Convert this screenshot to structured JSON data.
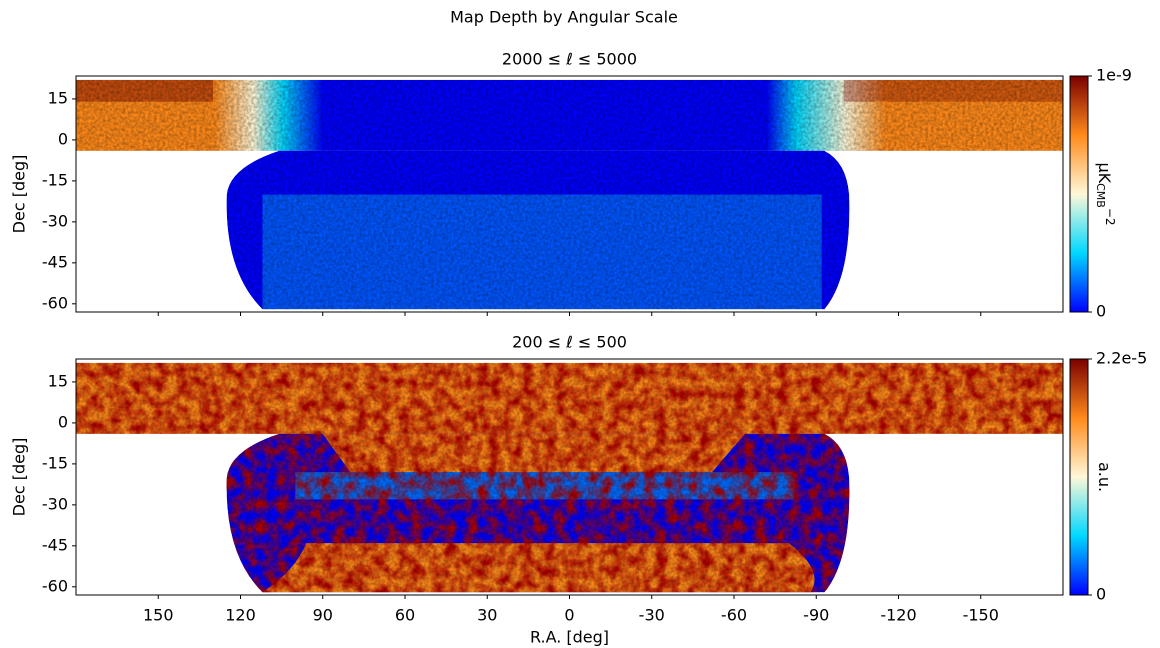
{
  "title": "Map Depth by Angular Scale",
  "chart_data": [
    {
      "type": "heatmap",
      "title": "2000 ≤ ℓ ≤ 5000",
      "ylabel": "Dec [deg]",
      "xlim": [
        180,
        -180
      ],
      "xticks": [
        150,
        120,
        90,
        60,
        30,
        0,
        -30,
        -60,
        -90,
        -120,
        -150
      ],
      "ylim": [
        -63,
        23.4
      ],
      "yticks": [
        15,
        0,
        -15,
        -30,
        -45,
        -60
      ],
      "colormap": [
        "#0000ff",
        "#00d8ff",
        "#fff8d8",
        "#ff8a1a",
        "#7a0000"
      ],
      "clim": [
        0,
        1e-09
      ],
      "cticks": [
        0,
        1e-09
      ],
      "colorbar_label": {
        "text": "μK",
        "subscript": "CMB",
        "superscript": "−2"
      }
    },
    {
      "type": "heatmap",
      "title": "200 ≤ ℓ ≤ 500",
      "ylabel": "Dec [deg]",
      "xlabel": "R.A. [deg]",
      "xlim": [
        180,
        -180
      ],
      "xticks": [
        150,
        120,
        90,
        60,
        30,
        0,
        -30,
        -60,
        -90,
        -120,
        -150
      ],
      "ylim": [
        -63,
        23.4
      ],
      "yticks": [
        15,
        0,
        -15,
        -30,
        -45,
        -60
      ],
      "colormap": [
        "#0000ff",
        "#00d8ff",
        "#fff8d8",
        "#ff8a1a",
        "#7a0000"
      ],
      "clim": [
        0,
        2.2e-05
      ],
      "cticks": [
        0,
        {
          "value": 2.2e-05,
          "label": "2.2e-5"
        }
      ],
      "colorbar_label": {
        "text": "a.u."
      }
    }
  ]
}
